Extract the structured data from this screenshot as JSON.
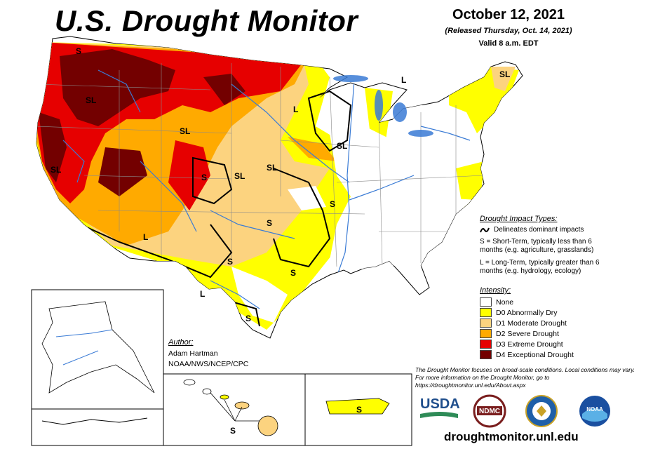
{
  "header": {
    "title": "U.S. Drought Monitor",
    "date": "October 12, 2021",
    "released": "(Released Thursday, Oct. 14, 2021)",
    "valid": "Valid 8 a.m. EDT"
  },
  "impact_legend": {
    "heading": "Drought Impact Types:",
    "line_label": "Delineates dominant impacts",
    "s_desc": "S = Short-Term, typically less than 6 months (e.g. agriculture, grasslands)",
    "l_desc": "L = Long-Term, typically greater than 6 months (e.g. hydrology, ecology)"
  },
  "intensity_legend": {
    "heading": "Intensity:",
    "items": [
      {
        "label": "None",
        "color": "#ffffff"
      },
      {
        "label": "D0 Abnormally Dry",
        "color": "#ffff00"
      },
      {
        "label": "D1 Moderate Drought",
        "color": "#fcd37f"
      },
      {
        "label": "D2 Severe Drought",
        "color": "#ffaa00"
      },
      {
        "label": "D3 Extreme Drought",
        "color": "#e60000"
      },
      {
        "label": "D4 Exceptional Drought",
        "color": "#730000"
      }
    ]
  },
  "author": {
    "heading": "Author:",
    "name": "Adam Hartman",
    "org": "NOAA/NWS/NCEP/CPC"
  },
  "disclaimer": "The Drought Monitor focuses on broad-scale conditions. Local conditions may vary. For more information on the Drought Monitor, go to https://droughtmonitor.unl.edu/About.aspx",
  "url": "droughtmonitor.unl.edu",
  "logos": {
    "usda": "USDA",
    "ndmc": "NDMC",
    "commerce": "DEPARTMENT OF COMMERCE",
    "noaa": "NOAA"
  },
  "map_labels": {
    "wa": "S",
    "or": "SL",
    "mt_n": "L",
    "id_mt": "SL",
    "ca": "SL",
    "az": "L",
    "mn": "L",
    "wi": "L",
    "ia": "SL",
    "ne": "SL",
    "co": "S",
    "ks": "SL",
    "ok": "S",
    "tx_n": "S",
    "tx_e": "S",
    "tx_w": "L",
    "tx_s": "S",
    "mo": "S",
    "ne_maine": "SL",
    "hi": "S",
    "pr": "S"
  }
}
